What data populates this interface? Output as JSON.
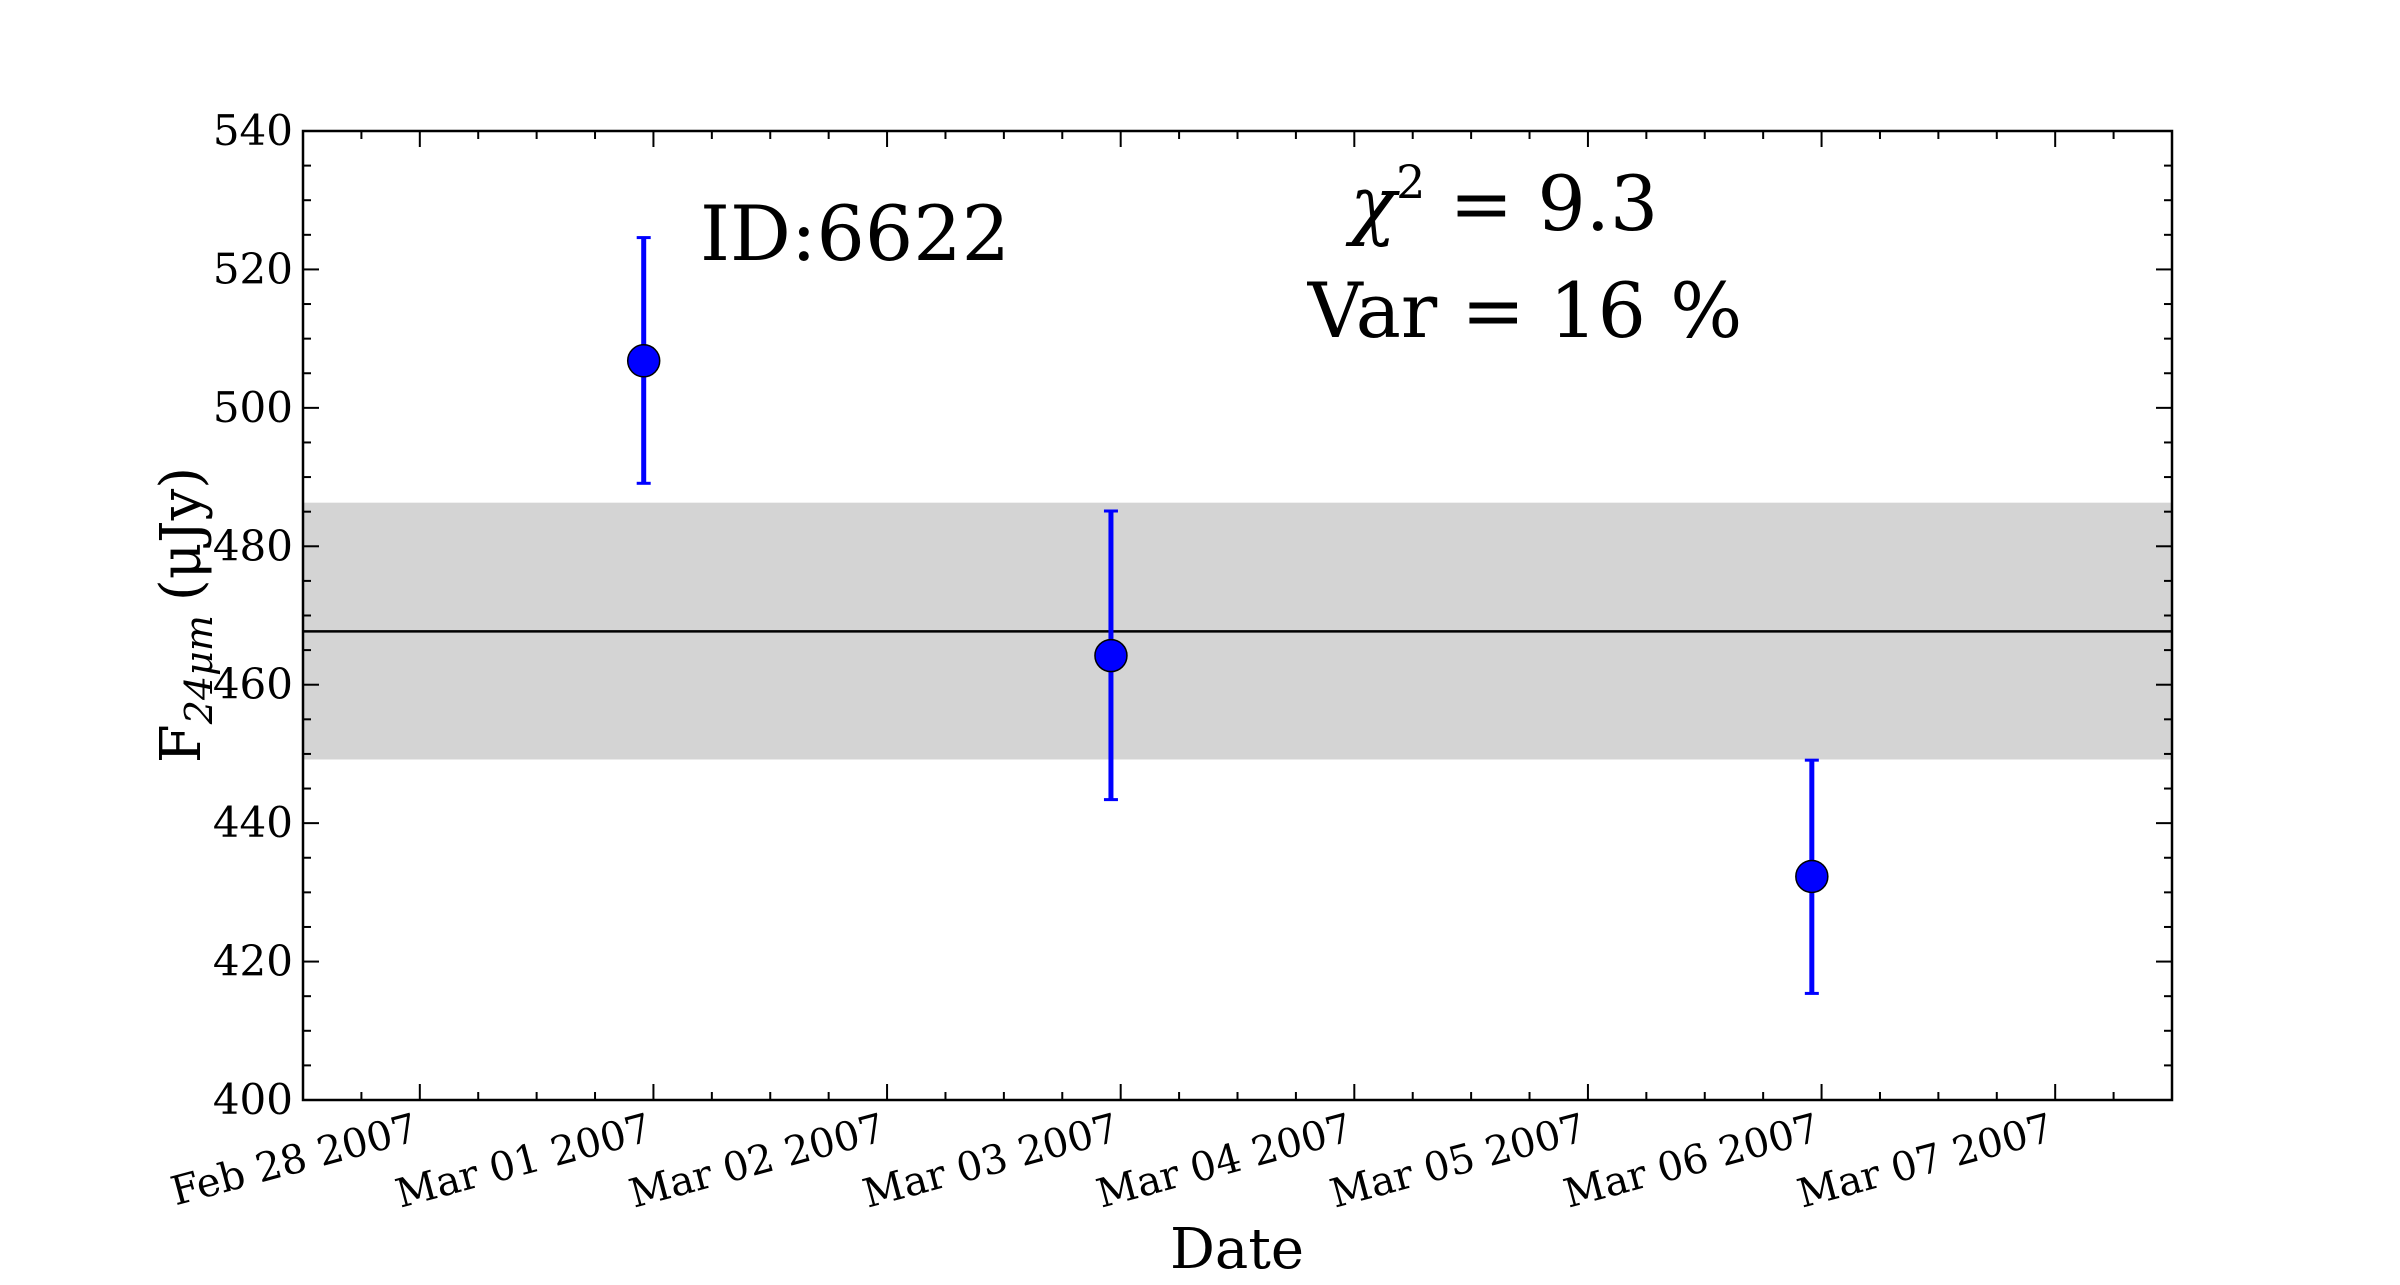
{
  "chart_data": {
    "type": "scatter",
    "title": "",
    "xlabel": "Date",
    "ylabel": "F",
    "ylabel_subscript": "24μm",
    "ylabel_unit": "(μJy)",
    "ylim": [
      400,
      540
    ],
    "xlim": [
      "2007-02-27T12:00",
      "2007-03-07T12:00"
    ],
    "yticks": [
      "400",
      "420",
      "440",
      "460",
      "480",
      "500",
      "520",
      "540"
    ],
    "xticks": [
      {
        "date": "2007-02-28T00:00",
        "label": "Feb 28 2007"
      },
      {
        "date": "2007-03-01T00:00",
        "label": "Mar 01 2007"
      },
      {
        "date": "2007-03-02T00:00",
        "label": "Mar 02 2007"
      },
      {
        "date": "2007-03-03T00:00",
        "label": "Mar 03 2007"
      },
      {
        "date": "2007-03-04T00:00",
        "label": "Mar 04 2007"
      },
      {
        "date": "2007-03-05T00:00",
        "label": "Mar 05 2007"
      },
      {
        "date": "2007-03-06T00:00",
        "label": "Mar 06 2007"
      },
      {
        "date": "2007-03-07T00:00",
        "label": "Mar 07 2007"
      }
    ],
    "points": [
      {
        "x": "2007-02-28T23:00",
        "y": 506.8,
        "yerr_low": 489.1,
        "yerr_high": 524.6
      },
      {
        "x": "2007-03-02T23:00",
        "y": 464.2,
        "yerr_low": 443.4,
        "yerr_high": 485.1
      },
      {
        "x": "2007-03-05T23:00",
        "y": 432.3,
        "yerr_low": 415.4,
        "yerr_high": 449.1
      }
    ],
    "mean": 467.7,
    "band": [
      449.2,
      486.3
    ],
    "annotations": {
      "id_label": "ID:6622",
      "chi_symbol": "χ",
      "chi_exp": "2",
      "chi_value": " = 9.3",
      "var_label": "Var = 16 %"
    },
    "colors": {
      "points": "#0000ff",
      "band": "#d4d4d4",
      "mean_line": "#000000"
    },
    "grid": false,
    "legend": "none"
  }
}
